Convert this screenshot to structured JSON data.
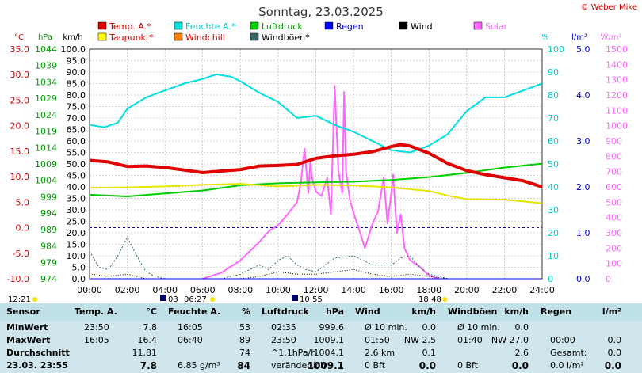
{
  "title": "Sonntag, 23.03.2025",
  "copyright": "© Weber Mike",
  "colors": {
    "temp": "#e00000",
    "dew": "#ffff00",
    "humidity": "#00e0e0",
    "windchill": "#ff8000",
    "pressure": "#00cc00",
    "gust": "#336666",
    "rain": "#0000ff",
    "wind": "#000000",
    "solar": "#ff66ff"
  },
  "legend": [
    {
      "label": "Temp. A.*",
      "color": "#e00000",
      "text_color": "#cc0000"
    },
    {
      "label": "Taupunkt*",
      "color": "#ffff00",
      "text_color": "#cc0000"
    },
    {
      "label": "Feuchte A.*",
      "color": "#00e0e0",
      "text_color": "#00cccc"
    },
    {
      "label": "Windchill",
      "color": "#ff8000",
      "text_color": "#cc0000"
    },
    {
      "label": "Luftdruck",
      "color": "#00cc00",
      "text_color": "#009900"
    },
    {
      "label": "Windböen*",
      "color": "#336666",
      "text_color": "#000000"
    },
    {
      "label": "Regen",
      "color": "#0000ff",
      "text_color": "#0000cc"
    },
    {
      "label": "Wind",
      "color": "#000000",
      "text_color": "#000000"
    },
    {
      "label": "Solar",
      "color": "#ff66ff",
      "text_color": "#ff66ff"
    }
  ],
  "axis_units": {
    "temp": "°C",
    "hpa": "hPa",
    "kmh": "km/h",
    "pct": "%",
    "rain": "l/m²",
    "solar": "W/m²"
  },
  "ticks": {
    "temp": [
      "35.0",
      "30.0",
      "25.0",
      "20.0",
      "15.0",
      "10.0",
      "5.0",
      "0.0",
      "-5.0",
      "-10.0"
    ],
    "hpa": [
      "1044",
      "1039",
      "1034",
      "1029",
      "1024",
      "1019",
      "1014",
      "1009",
      "1004",
      "999",
      "994",
      "989",
      "984",
      "979",
      "974"
    ],
    "kmh": [
      "100.0",
      "95.0",
      "90.0",
      "85.0",
      "80.0",
      "75.0",
      "70.0",
      "65.0",
      "60.0",
      "55.0",
      "50.0",
      "45.0",
      "40.0",
      "35.0",
      "30.0",
      "25.0",
      "20.0",
      "15.0",
      "10.0",
      "5.0",
      "0.0"
    ],
    "pct": [
      "100",
      "90",
      "80",
      "70",
      "60",
      "50",
      "40",
      "30",
      "20",
      "10",
      "0"
    ],
    "rain": [
      "5.0",
      "4.0",
      "3.0",
      "2.0",
      "1.0",
      "0.0"
    ],
    "solar": [
      "1500",
      "1400",
      "1300",
      "1200",
      "1100",
      "1000",
      "900",
      "800",
      "700",
      "600",
      "500",
      "400",
      "300",
      "200",
      "100",
      "0"
    ],
    "x": [
      "00:00",
      "02:00",
      "04:00",
      "06:00",
      "08:00",
      "10:00",
      "12:00",
      "14:00",
      "16:00",
      "18:00",
      "20:00",
      "22:00",
      "24:00"
    ]
  },
  "sun_moon": {
    "moon_rise": "12:21",
    "moon_set_left": "03",
    "sunrise": "06:27",
    "moon_set": "10:55",
    "sunset": "18:48"
  },
  "chart_data": {
    "type": "line",
    "title": "Sonntag, 23.03.2025",
    "x_range": [
      0,
      24
    ],
    "series": [
      {
        "name": "Temp. A.*",
        "unit": "°C",
        "ylim": [
          -10,
          35
        ],
        "x": [
          0,
          1,
          2,
          3,
          4,
          5,
          6,
          7,
          8,
          9,
          10,
          11,
          12,
          13,
          14,
          15,
          16,
          16.5,
          17,
          18,
          19,
          20,
          21,
          22,
          23,
          24
        ],
        "values": [
          13.2,
          12.9,
          12.0,
          12.1,
          11.8,
          11.3,
          10.8,
          11.1,
          11.4,
          12.1,
          12.2,
          12.4,
          13.6,
          14.1,
          14.4,
          14.9,
          15.9,
          16.3,
          16.0,
          14.6,
          12.6,
          11.2,
          10.4,
          9.8,
          9.2,
          8.0
        ]
      },
      {
        "name": "Taupunkt*",
        "unit": "°C",
        "ylim": [
          -10,
          35
        ],
        "x": [
          0,
          2,
          4,
          6,
          8,
          10,
          12,
          14,
          16,
          18,
          19,
          20,
          22,
          24
        ],
        "values": [
          7.8,
          7.9,
          8.1,
          8.4,
          8.6,
          8.1,
          8.4,
          8.3,
          7.9,
          7.2,
          6.3,
          5.6,
          5.5,
          4.8
        ]
      },
      {
        "name": "Feuchte A.*",
        "unit": "%",
        "ylim": [
          0,
          100
        ],
        "x": [
          0,
          0.8,
          1.5,
          2,
          3,
          4,
          5,
          6,
          6.7,
          7.5,
          8,
          9,
          10,
          11,
          12,
          13,
          14,
          15,
          16,
          17,
          18,
          19,
          20,
          21,
          22,
          23,
          24
        ],
        "values": [
          67,
          66,
          68,
          74,
          79,
          82,
          85,
          87,
          89,
          88,
          86,
          81,
          77,
          70,
          71,
          67,
          64,
          60,
          56,
          55,
          58,
          63,
          73,
          79,
          79,
          82,
          85
        ]
      },
      {
        "name": "Luftdruck",
        "unit": "hPa",
        "ylim": [
          974,
          1044
        ],
        "x": [
          0,
          2,
          4,
          6,
          8,
          10,
          12,
          14,
          16,
          18,
          20,
          22,
          24
        ],
        "values": [
          999.6,
          999.1,
          1000.0,
          1000.9,
          1002.5,
          1003.1,
          1003.4,
          1003.6,
          1004.1,
          1005.0,
          1006.3,
          1007.9,
          1009.1
        ]
      },
      {
        "name": "Windböen*",
        "unit": "km/h",
        "ylim": [
          0,
          100
        ],
        "x": [
          0,
          0.5,
          1,
          1.5,
          2,
          2.5,
          3,
          3.5,
          4,
          5,
          6,
          7,
          8,
          9,
          9.5,
          10,
          10.5,
          11,
          11.5,
          12,
          13,
          14,
          15,
          16,
          16.5,
          17,
          17.5,
          18,
          19,
          20,
          22,
          24
        ],
        "values": [
          12,
          5,
          4,
          10,
          18,
          10,
          3,
          1,
          0,
          0,
          0,
          0,
          2,
          6,
          4,
          8,
          10,
          6,
          4,
          3,
          9,
          10,
          6,
          6,
          9,
          10,
          5,
          2,
          0,
          0,
          0,
          0
        ]
      },
      {
        "name": "Wind",
        "unit": "km/h",
        "ylim": [
          0,
          100
        ],
        "x": [
          0,
          1,
          2,
          3,
          4,
          6,
          8,
          9,
          10,
          11,
          12,
          13,
          14,
          15,
          16,
          17,
          18,
          19,
          24
        ],
        "values": [
          2,
          1,
          2,
          0,
          0,
          0,
          0,
          1,
          3,
          2,
          2,
          3,
          4,
          2,
          1,
          2,
          1,
          0,
          0
        ]
      },
      {
        "name": "Solar",
        "unit": "W/m²",
        "ylim": [
          0,
          1500
        ],
        "x": [
          6,
          6.5,
          7,
          7.5,
          8,
          8.5,
          9,
          9.5,
          10,
          10.5,
          11,
          11.2,
          11.4,
          11.6,
          11.7,
          11.8,
          12,
          12.3,
          12.6,
          12.8,
          13,
          13.2,
          13.4,
          13.5,
          13.6,
          13.8,
          14,
          14.3,
          14.6,
          15,
          15.3,
          15.6,
          15.8,
          16,
          16.1,
          16.3,
          16.5,
          16.7,
          17,
          17.5,
          18,
          18.5
        ],
        "values": [
          0,
          20,
          40,
          80,
          120,
          180,
          240,
          310,
          350,
          420,
          500,
          620,
          850,
          560,
          760,
          660,
          570,
          540,
          660,
          420,
          1260,
          700,
          560,
          1220,
          700,
          520,
          430,
          320,
          200,
          360,
          440,
          660,
          360,
          560,
          680,
          300,
          420,
          200,
          120,
          80,
          20,
          0
        ]
      },
      {
        "name": "Regen",
        "unit": "l/m²",
        "ylim": [
          0,
          5
        ],
        "x": [
          0,
          24
        ],
        "values": [
          0,
          0
        ]
      }
    ]
  },
  "table": {
    "headers": [
      {
        "h1": "Sensor",
        "h2": ""
      },
      {
        "h1": "Temp. A.",
        "h2": "°C"
      },
      {
        "h1": "Feuchte A.",
        "h2": "%"
      },
      {
        "h1": "Luftdruck",
        "h2": "hPa"
      },
      {
        "h1": "Wind",
        "h2": "km/h"
      },
      {
        "h1": "Windböen",
        "h2": "km/h"
      },
      {
        "h1": "Regen",
        "h2": "l/m²"
      }
    ],
    "rows": [
      {
        "label": "MinWert",
        "temp_t": "23:50",
        "temp_v": "7.8",
        "hum_t": "16:05",
        "hum_v": "53",
        "pr_t": "02:35",
        "pr_v": "999.6",
        "w_t": "Ø 10 min.",
        "w_v": "0.0",
        "g_t": "Ø 10 min.",
        "g_v": "0.0",
        "r_t": "",
        "r_v": ""
      },
      {
        "label": "MaxWert",
        "temp_t": "16:05",
        "temp_v": "16.4",
        "hum_t": "06:40",
        "hum_v": "89",
        "pr_t": "23:50",
        "pr_v": "1009.1",
        "w_t": "01:50",
        "w_v": "NW 2.5",
        "g_t": "01:40",
        "g_v": "NW 27.0",
        "r_t": "00:00",
        "r_v": "0.0"
      },
      {
        "label": "Durchschnitt",
        "temp_t": "",
        "temp_v": "11.81",
        "hum_t": "",
        "hum_v": "74",
        "pr_t": "^1.1hPa/h",
        "pr_v": "1004.1",
        "w_t": "2.6 km",
        "w_v": "0.1",
        "g_t": "",
        "g_v": "2.6",
        "r_t": "Gesamt:",
        "r_v": "0.0"
      },
      {
        "label": "23.03. 23:55",
        "temp_t": "",
        "temp_v": "7.8",
        "hum_t": "6.85 g/m³",
        "hum_v": "84",
        "pr_t": "veränderlich",
        "pr_v": "1009.1",
        "w_t": "0 Bft",
        "w_v": "0.0",
        "g_t": "0 Bft",
        "g_v": "0.0",
        "r_t": "0.0 l/m²",
        "r_v": "0.0"
      }
    ]
  }
}
